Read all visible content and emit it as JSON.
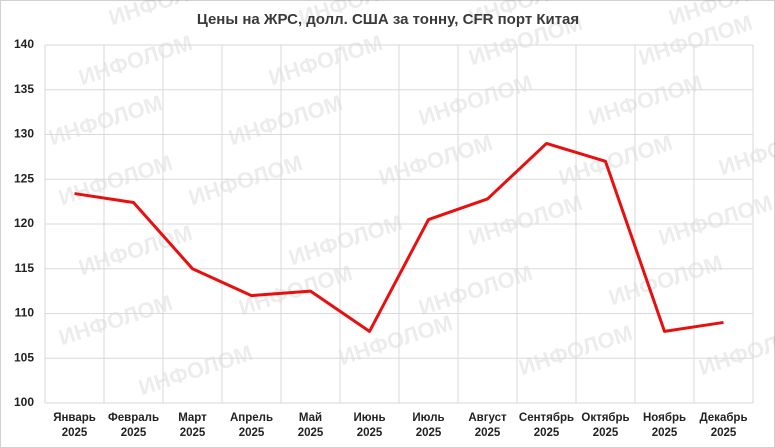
{
  "chart_data": {
    "type": "line",
    "title": "Цены на ЖРС, долл. США за тонну, CFR порт Китая",
    "watermark": "ИНФОЛОМ",
    "categories": [
      [
        "Январь",
        "2025"
      ],
      [
        "Февраль",
        "2025"
      ],
      [
        "Март",
        "2025"
      ],
      [
        "Апрель",
        "2025"
      ],
      [
        "Май",
        "2025"
      ],
      [
        "Июнь",
        "2025"
      ],
      [
        "Июль",
        "2025"
      ],
      [
        "Август",
        "2025"
      ],
      [
        "Сентябрь",
        "2025"
      ],
      [
        "Октябрь",
        "2025"
      ],
      [
        "Ноябрь",
        "2025"
      ],
      [
        "Декабрь",
        "2025"
      ]
    ],
    "series": [
      {
        "name": "ЖРС",
        "color": "#e8100f",
        "values": [
          123.4,
          122.4,
          115,
          112,
          112.5,
          108,
          120.5,
          122.8,
          129,
          127,
          108,
          109
        ]
      }
    ],
    "ylim": [
      100,
      140
    ],
    "yticks": [
      100,
      105,
      110,
      115,
      120,
      125,
      130,
      135,
      140
    ],
    "grid": true
  }
}
